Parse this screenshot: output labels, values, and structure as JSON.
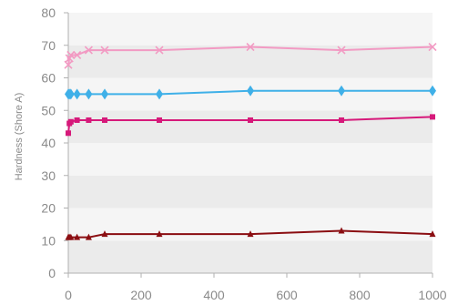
{
  "chart_data": {
    "type": "line",
    "title": "",
    "xlabel": "",
    "ylabel": "Hardness (Shore A)",
    "xlim": [
      0,
      1000
    ],
    "ylim": [
      0,
      80
    ],
    "x_ticks": [
      0,
      200,
      400,
      600,
      800,
      1000
    ],
    "y_ticks": [
      0,
      10,
      20,
      30,
      40,
      50,
      60,
      70,
      80
    ],
    "grid": "horizontal bands",
    "legend": "none",
    "series": [
      {
        "color": "#f29ac3",
        "marker": "x",
        "points": [
          [
            0,
            64
          ],
          [
            3,
            66
          ],
          [
            7,
            67
          ],
          [
            24,
            67
          ],
          [
            56,
            68.5
          ],
          [
            100,
            68.5
          ],
          [
            250,
            68.5
          ],
          [
            500,
            69.5
          ],
          [
            750,
            68.5
          ],
          [
            1000,
            69.5
          ]
        ]
      },
      {
        "color": "#3fb0e8",
        "marker": "diamond",
        "points": [
          [
            0,
            55
          ],
          [
            3,
            55
          ],
          [
            7,
            55
          ],
          [
            24,
            55
          ],
          [
            56,
            55
          ],
          [
            100,
            55
          ],
          [
            250,
            55
          ],
          [
            500,
            56
          ],
          [
            750,
            56
          ],
          [
            1000,
            56
          ]
        ]
      },
      {
        "color": "#d6197a",
        "marker": "square",
        "points": [
          [
            0,
            43
          ],
          [
            3,
            46
          ],
          [
            7,
            46.5
          ],
          [
            24,
            47
          ],
          [
            56,
            47
          ],
          [
            100,
            47
          ],
          [
            250,
            47
          ],
          [
            500,
            47
          ],
          [
            750,
            47
          ],
          [
            1000,
            48
          ]
        ]
      },
      {
        "color": "#8b0e12",
        "marker": "triangle",
        "points": [
          [
            0,
            11
          ],
          [
            3,
            11
          ],
          [
            7,
            11
          ],
          [
            24,
            11
          ],
          [
            56,
            11
          ],
          [
            100,
            12
          ],
          [
            250,
            12
          ],
          [
            500,
            12
          ],
          [
            750,
            13
          ],
          [
            1000,
            12
          ]
        ]
      }
    ]
  }
}
